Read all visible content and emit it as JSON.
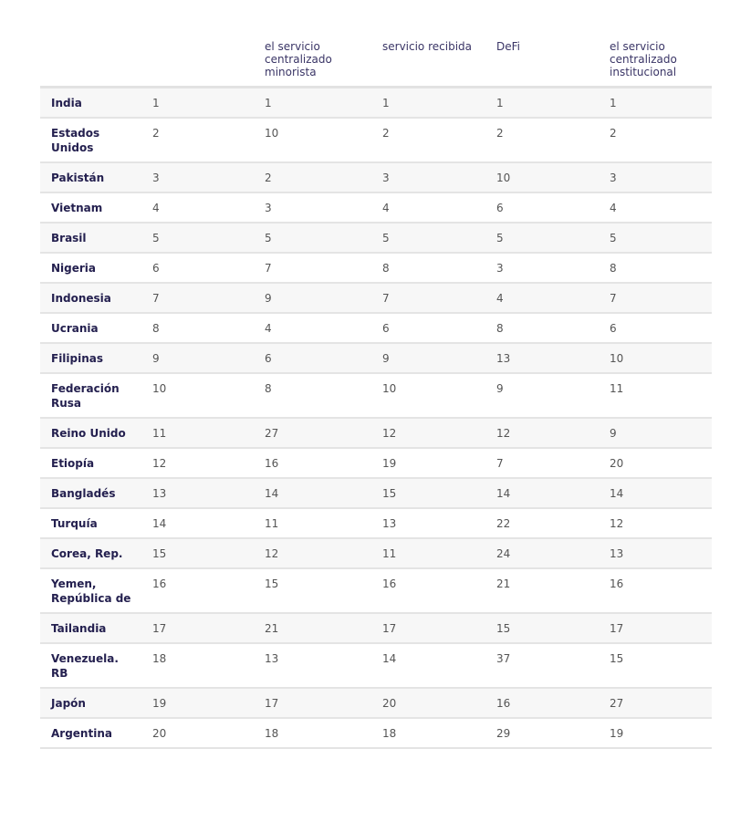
{
  "table": {
    "headers": [
      "",
      "",
      "el servicio centralizado minorista",
      "servicio recibida",
      "DeFi",
      "el servicio centralizado institucional"
    ],
    "rows": [
      [
        "India",
        "1",
        "1",
        "1",
        "1",
        "1"
      ],
      [
        "Estados Unidos",
        "2",
        "10",
        "2",
        "2",
        "2"
      ],
      [
        "Pakistán",
        "3",
        "2",
        "3",
        "10",
        "3"
      ],
      [
        "Vietnam",
        "4",
        "3",
        "4",
        "6",
        "4"
      ],
      [
        "Brasil",
        "5",
        "5",
        "5",
        "5",
        "5"
      ],
      [
        "Nigeria",
        "6",
        "7",
        "8",
        "3",
        "8"
      ],
      [
        "Indonesia",
        "7",
        "9",
        "7",
        "4",
        "7"
      ],
      [
        "Ucrania",
        "8",
        "4",
        "6",
        "8",
        "6"
      ],
      [
        "Filipinas",
        "9",
        "6",
        "9",
        "13",
        "10"
      ],
      [
        "Federación Rusa",
        "10",
        "8",
        "10",
        "9",
        "11"
      ],
      [
        "Reino Unido",
        "11",
        "27",
        "12",
        "12",
        "9"
      ],
      [
        "Etiopía",
        "12",
        "16",
        "19",
        "7",
        "20"
      ],
      [
        "Bangladés",
        "13",
        "14",
        "15",
        "14",
        "14"
      ],
      [
        "Turquía",
        "14",
        "11",
        "13",
        "22",
        "12"
      ],
      [
        "Corea, Rep.",
        "15",
        "12",
        "11",
        "24",
        "13"
      ],
      [
        "Yemen, República de",
        "16",
        "15",
        "16",
        "21",
        "16"
      ],
      [
        "Tailandia",
        "17",
        "21",
        "17",
        "15",
        "17"
      ],
      [
        "Venezuela. RB",
        "18",
        "13",
        "14",
        "37",
        "15"
      ],
      [
        "Japón",
        "19",
        "17",
        "20",
        "16",
        "27"
      ],
      [
        "Argentina",
        "20",
        "18",
        "18",
        "29",
        "19"
      ]
    ]
  }
}
